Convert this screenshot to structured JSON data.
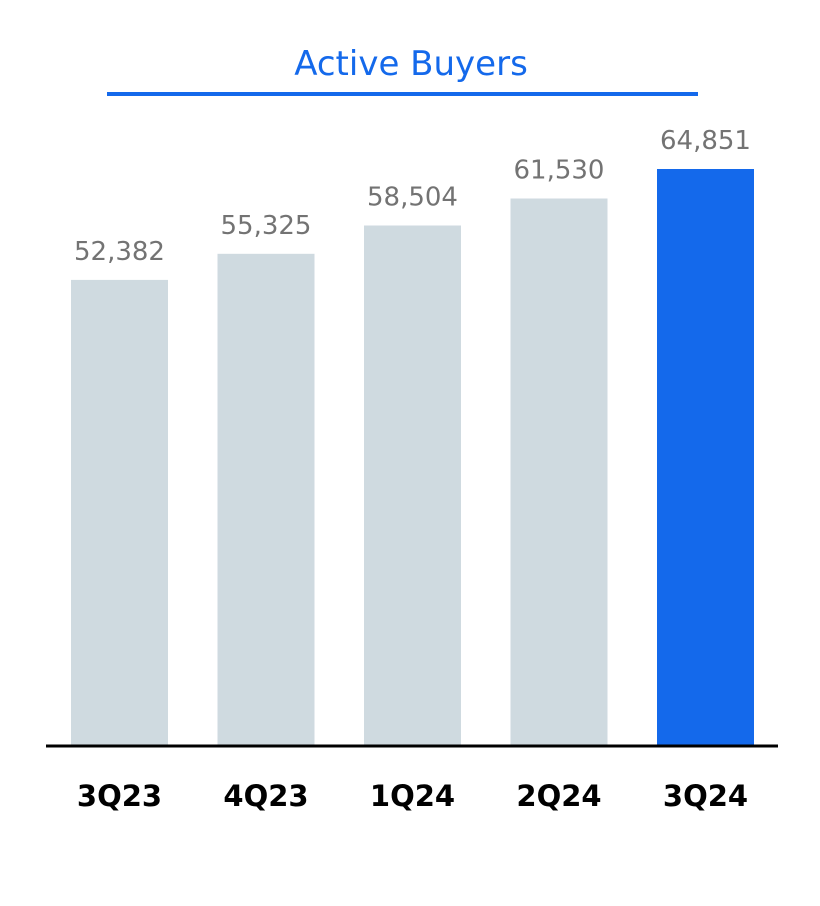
{
  "chart_data": {
    "type": "bar",
    "title": "Active Buyers",
    "categories": [
      "3Q23",
      "4Q23",
      "1Q24",
      "2Q24",
      "3Q24"
    ],
    "values": [
      52382,
      55325,
      58504,
      61530,
      64851
    ],
    "value_labels": [
      "52,382",
      "55,325",
      "58,504",
      "61,530",
      "64,851"
    ],
    "highlight_index": 4,
    "xlabel": "",
    "ylabel": "",
    "ylim": [
      0,
      64851
    ],
    "grid": false,
    "legend": "none"
  },
  "colors": {
    "accent": "#1469EB",
    "bar": "#CFDAE0",
    "axis": "#000000",
    "value_label": "#737373"
  }
}
